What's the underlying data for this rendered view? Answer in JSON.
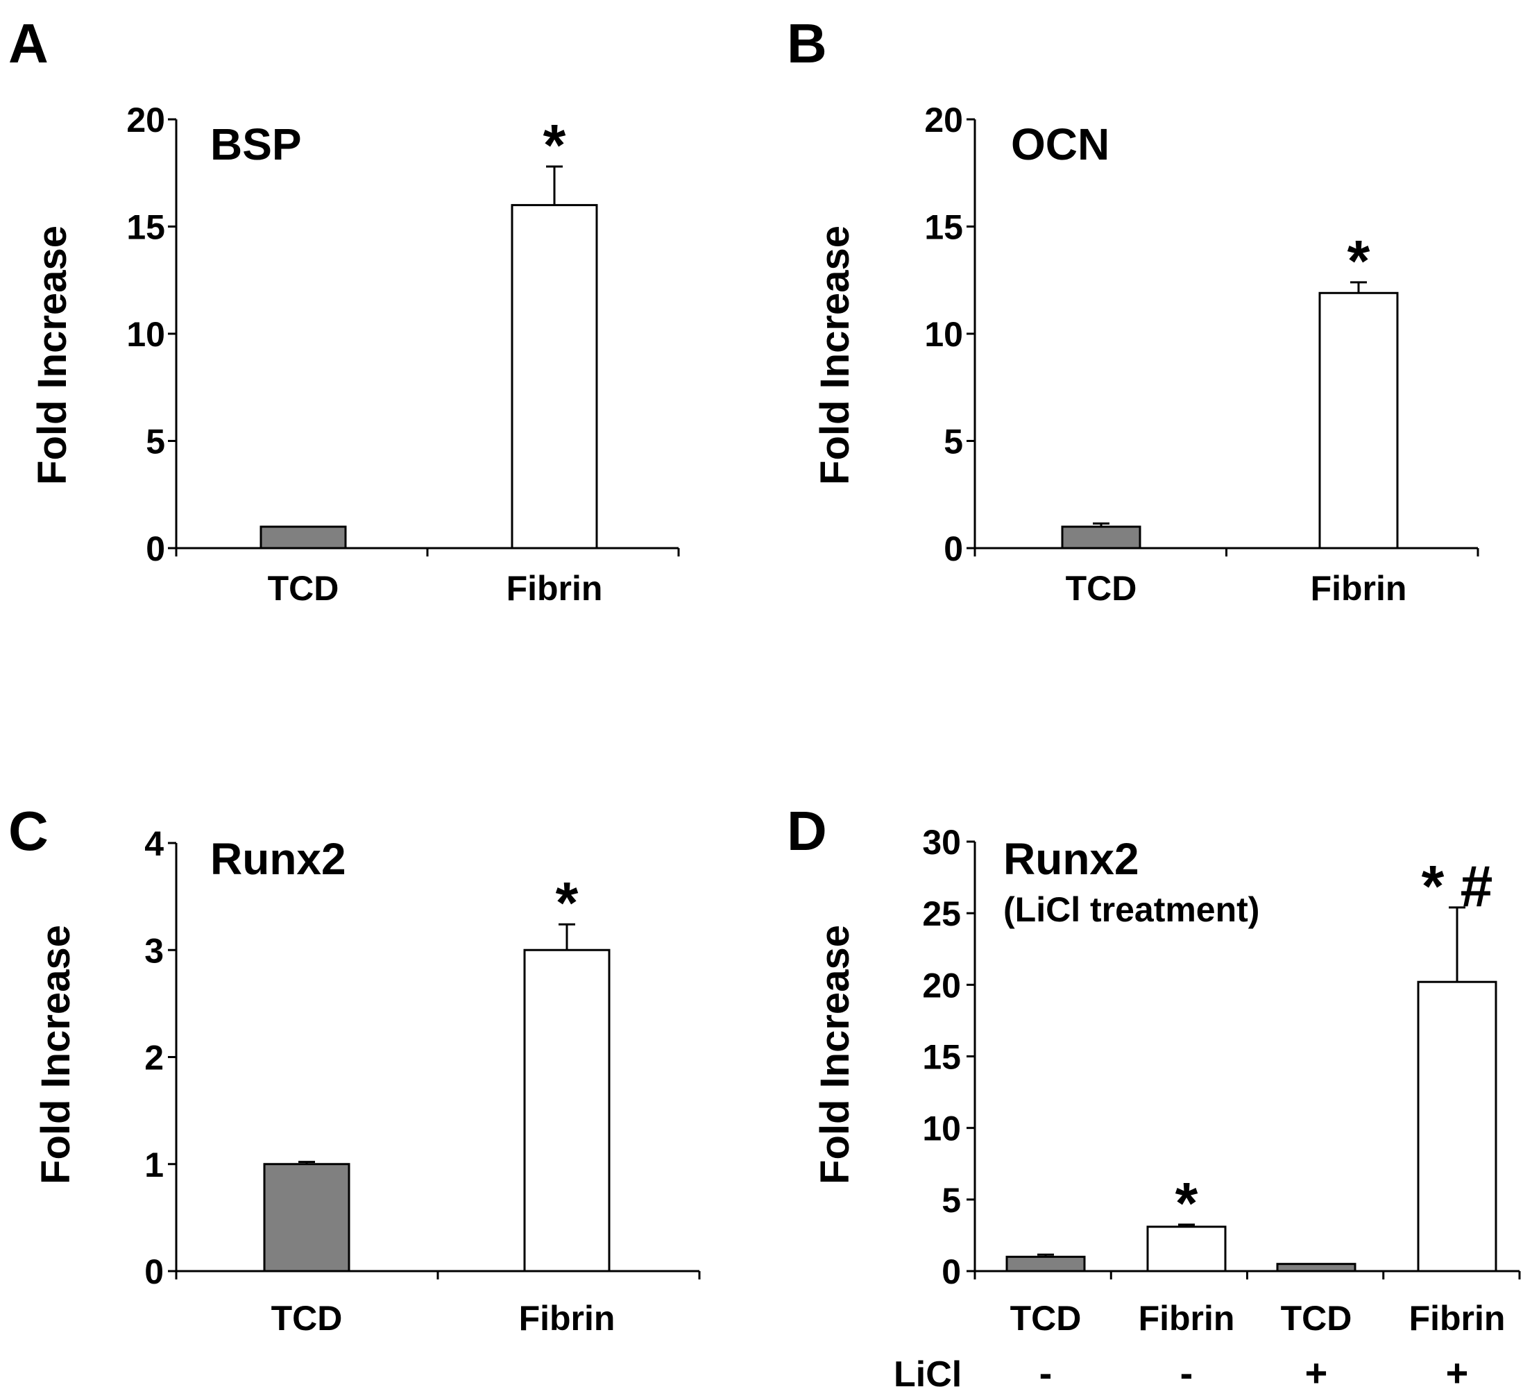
{
  "colors": {
    "tcd": "#808080",
    "fibrin": "#ffffff",
    "axis": "#000000"
  },
  "chart_data": [
    {
      "panel": "A",
      "type": "bar",
      "title": "BSP",
      "subtitle": "",
      "ylabel": "Fold Increase",
      "xlabel": "",
      "ylim": [
        0,
        20
      ],
      "yticks": [
        0,
        5,
        10,
        15,
        20
      ],
      "categories": [
        "TCD",
        "Fibrin"
      ],
      "values": [
        1,
        16
      ],
      "errors": [
        0,
        1.8
      ],
      "fills": [
        "#808080",
        "#ffffff"
      ],
      "annotations": [
        "",
        "*"
      ],
      "licl_label": "",
      "licl": []
    },
    {
      "panel": "B",
      "type": "bar",
      "title": "OCN",
      "subtitle": "",
      "ylabel": "Fold Increase",
      "xlabel": "",
      "ylim": [
        0,
        20
      ],
      "yticks": [
        0,
        5,
        10,
        15,
        20
      ],
      "categories": [
        "TCD",
        "Fibrin"
      ],
      "values": [
        1,
        11.9
      ],
      "errors": [
        0.15,
        0.5
      ],
      "fills": [
        "#808080",
        "#ffffff"
      ],
      "annotations": [
        "",
        "*"
      ],
      "licl_label": "",
      "licl": []
    },
    {
      "panel": "C",
      "type": "bar",
      "title": "Runx2",
      "subtitle": "",
      "ylabel": "Fold Increase",
      "xlabel": "",
      "ylim": [
        0,
        4
      ],
      "yticks": [
        0,
        1,
        2,
        3,
        4
      ],
      "categories": [
        "TCD",
        "Fibrin"
      ],
      "values": [
        1,
        3
      ],
      "errors": [
        0.02,
        0.24
      ],
      "fills": [
        "#808080",
        "#ffffff"
      ],
      "annotations": [
        "",
        "*"
      ],
      "licl_label": "",
      "licl": []
    },
    {
      "panel": "D",
      "type": "bar",
      "title": "Runx2",
      "subtitle": "(LiCl treatment)",
      "ylabel": "Fold Increase",
      "xlabel": "",
      "ylim": [
        0,
        30
      ],
      "yticks": [
        0,
        5,
        10,
        15,
        20,
        25,
        30
      ],
      "categories": [
        "TCD",
        "Fibrin",
        "TCD",
        "Fibrin"
      ],
      "values": [
        1,
        3.1,
        0.5,
        20.2
      ],
      "errors": [
        0.15,
        0.15,
        0,
        5.2
      ],
      "fills": [
        "#808080",
        "#ffffff",
        "#808080",
        "#ffffff"
      ],
      "annotations": [
        "",
        "*",
        "",
        "* #"
      ],
      "licl_label": "LiCl",
      "licl": [
        "-",
        "-",
        "+",
        "+"
      ]
    }
  ]
}
